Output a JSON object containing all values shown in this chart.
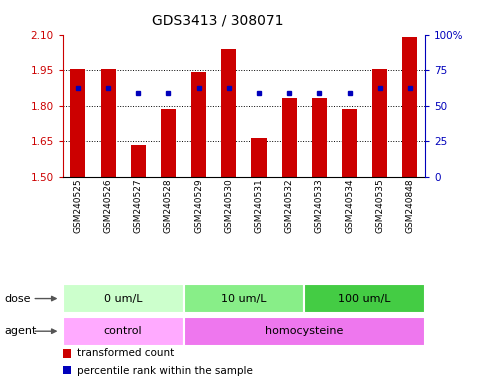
{
  "title": "GDS3413 / 308071",
  "samples": [
    "GSM240525",
    "GSM240526",
    "GSM240527",
    "GSM240528",
    "GSM240529",
    "GSM240530",
    "GSM240531",
    "GSM240532",
    "GSM240533",
    "GSM240534",
    "GSM240535",
    "GSM240848"
  ],
  "red_values": [
    1.955,
    1.955,
    1.635,
    1.785,
    1.94,
    2.04,
    1.665,
    1.83,
    1.83,
    1.785,
    1.955,
    2.09
  ],
  "blue_values": [
    1.875,
    1.875,
    1.855,
    1.855,
    1.875,
    1.875,
    1.855,
    1.855,
    1.855,
    1.855,
    1.875,
    1.875
  ],
  "ymin": 1.5,
  "ymax": 2.1,
  "yticks": [
    1.5,
    1.65,
    1.8,
    1.95,
    2.1
  ],
  "right_yticks": [
    0,
    25,
    50,
    75,
    100
  ],
  "right_ytick_labels": [
    "0",
    "25",
    "50",
    "75",
    "100%"
  ],
  "bar_color": "#CC0000",
  "dot_color": "#0000BB",
  "dose_groups": [
    {
      "label": "0 um/L",
      "start": 0,
      "end": 4,
      "color": "#CCFFCC"
    },
    {
      "label": "10 um/L",
      "start": 4,
      "end": 8,
      "color": "#88EE88"
    },
    {
      "label": "100 um/L",
      "start": 8,
      "end": 12,
      "color": "#44CC44"
    }
  ],
  "agent_groups": [
    {
      "label": "control",
      "start": 0,
      "end": 4,
      "color": "#FFAAFF"
    },
    {
      "label": "homocysteine",
      "start": 4,
      "end": 12,
      "color": "#EE77EE"
    }
  ],
  "dose_label": "dose",
  "agent_label": "agent",
  "legend_red": "transformed count",
  "legend_blue": "percentile rank within the sample",
  "tick_color_left": "#CC0000",
  "tick_color_right": "#0000BB"
}
